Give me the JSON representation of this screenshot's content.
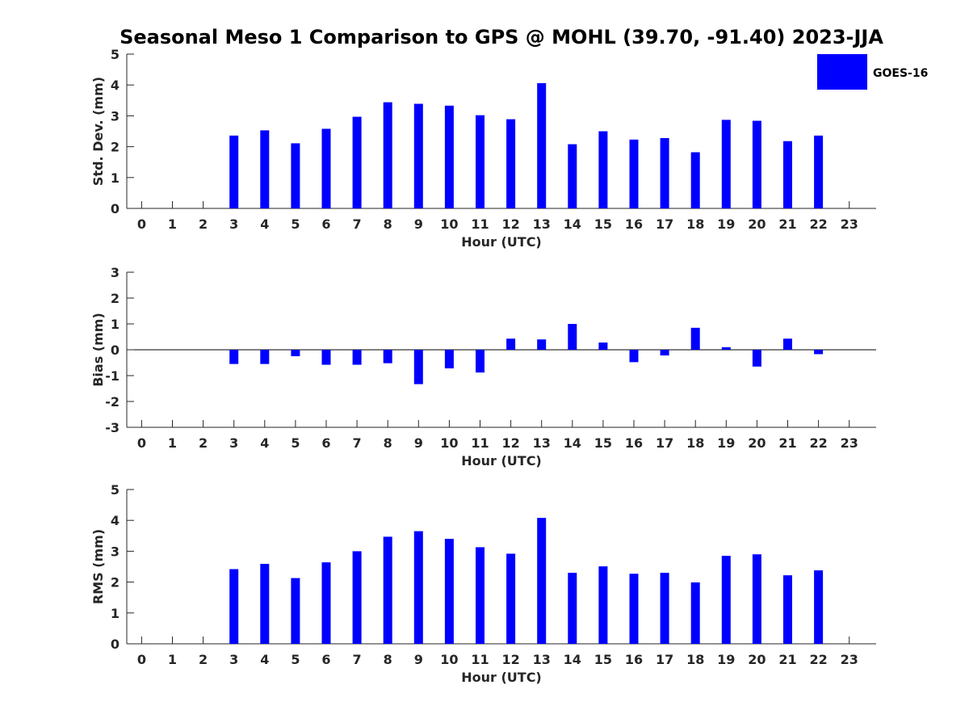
{
  "figure_title": "Seasonal Meso 1 Comparison to GPS @ MOHL (39.70, -91.40) 2023-JJA",
  "legend": {
    "label": "GOES-16",
    "color": "#0000ff"
  },
  "chart_data": [
    {
      "type": "bar",
      "title": "Seasonal Meso 1 Comparison to GPS @ MOHL (39.70, -91.40) 2023-JJA",
      "xlabel": "Hour (UTC)",
      "ylabel": "Std. Dev. (mm)",
      "ylim": [
        0,
        5
      ],
      "yticks": [
        0,
        1,
        2,
        3,
        4,
        5
      ],
      "categories": [
        "0",
        "1",
        "2",
        "3",
        "4",
        "5",
        "6",
        "7",
        "8",
        "9",
        "10",
        "11",
        "12",
        "13",
        "14",
        "15",
        "16",
        "17",
        "18",
        "19",
        "20",
        "21",
        "22",
        "23"
      ],
      "series": [
        {
          "name": "GOES-16",
          "values": [
            null,
            null,
            null,
            2.36,
            2.53,
            2.11,
            2.58,
            2.97,
            3.44,
            3.39,
            3.33,
            3.02,
            2.89,
            4.06,
            2.08,
            2.5,
            2.23,
            2.28,
            1.82,
            2.87,
            2.84,
            2.18,
            2.36,
            null
          ]
        }
      ]
    },
    {
      "type": "bar",
      "xlabel": "Hour (UTC)",
      "ylabel": "Bias (mm)",
      "ylim": [
        -3,
        3
      ],
      "yticks": [
        -3,
        -2,
        -1,
        0,
        1,
        2,
        3
      ],
      "categories": [
        "0",
        "1",
        "2",
        "3",
        "4",
        "5",
        "6",
        "7",
        "8",
        "9",
        "10",
        "11",
        "12",
        "13",
        "14",
        "15",
        "16",
        "17",
        "18",
        "19",
        "20",
        "21",
        "22",
        "23"
      ],
      "series": [
        {
          "name": "GOES-16",
          "values": [
            null,
            null,
            null,
            -0.55,
            -0.55,
            -0.25,
            -0.58,
            -0.58,
            -0.52,
            -1.33,
            -0.72,
            -0.88,
            0.43,
            0.4,
            1.0,
            0.28,
            -0.48,
            -0.22,
            0.85,
            0.1,
            -0.65,
            0.43,
            -0.17,
            null
          ]
        }
      ]
    },
    {
      "type": "bar",
      "xlabel": "Hour (UTC)",
      "ylabel": "RMS (mm)",
      "ylim": [
        0,
        5
      ],
      "yticks": [
        0,
        1,
        2,
        3,
        4,
        5
      ],
      "categories": [
        "0",
        "1",
        "2",
        "3",
        "4",
        "5",
        "6",
        "7",
        "8",
        "9",
        "10",
        "11",
        "12",
        "13",
        "14",
        "15",
        "16",
        "17",
        "18",
        "19",
        "20",
        "21",
        "22",
        "23"
      ],
      "series": [
        {
          "name": "GOES-16",
          "values": [
            null,
            null,
            null,
            2.42,
            2.59,
            2.13,
            2.64,
            3.0,
            3.47,
            3.65,
            3.4,
            3.13,
            2.92,
            4.08,
            2.3,
            2.51,
            2.27,
            2.3,
            1.99,
            2.85,
            2.9,
            2.22,
            2.38,
            null
          ]
        }
      ]
    }
  ]
}
